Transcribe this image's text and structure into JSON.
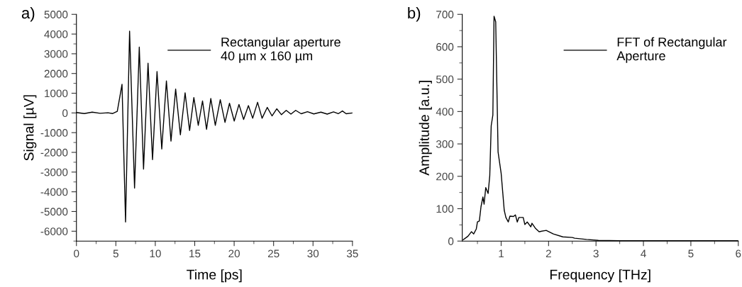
{
  "chart_data": [
    {
      "type": "line",
      "xlabel": "Time [ps]",
      "ylabel": "Signal [µV]",
      "annotations": [
        "a)"
      ],
      "legend": "top right",
      "grid": false,
      "xlim": [
        0,
        35
      ],
      "xticks": [
        0,
        {
          "value": 2.5,
          "label": null
        },
        5,
        {
          "value": 7.5,
          "label": null
        },
        10,
        {
          "value": 12.5,
          "label": null
        },
        15,
        {
          "value": 17.5,
          "label": null
        },
        20,
        {
          "value": 22.5,
          "label": null
        },
        25,
        {
          "value": 27.5,
          "label": null
        },
        30,
        {
          "value": 32.5,
          "label": null
        },
        35
      ],
      "ylim": [
        -6500,
        5000
      ],
      "yticks": [
        {
          "value": -6500,
          "label": null
        },
        -6000,
        {
          "value": -5500,
          "label": null
        },
        -5000,
        {
          "value": -4500,
          "label": null
        },
        -4000,
        {
          "value": -3500,
          "label": null
        },
        -3000,
        {
          "value": -2500,
          "label": null
        },
        -2000,
        {
          "value": -1500,
          "label": null
        },
        -1000,
        {
          "value": -500,
          "label": null
        },
        0,
        {
          "value": 500,
          "label": null
        },
        1000,
        {
          "value": 1500,
          "label": null
        },
        2000,
        {
          "value": 2500,
          "label": null
        },
        3000,
        {
          "value": 3500,
          "label": null
        },
        4000,
        {
          "value": 4500,
          "label": null
        },
        5000
      ],
      "series": [
        {
          "name": "Rectangular aperture\n40 µm x 160 µm",
          "color": "#000000",
          "x": [
            0,
            1,
            2,
            3,
            4,
            4.6,
            5.18,
            5.78,
            6.23,
            6.74,
            7.37,
            7.97,
            8.51,
            9.08,
            9.65,
            10.22,
            10.82,
            11.41,
            11.99,
            12.58,
            13.18,
            13.78,
            14.35,
            14.89,
            15.45,
            15.99,
            16.5,
            17.04,
            17.61,
            18.24,
            18.84,
            19.41,
            20.01,
            20.61,
            21.2,
            21.81,
            22.35,
            22.97,
            23.54,
            24.2,
            24.8,
            25.4,
            26.0,
            26.6,
            27.2,
            27.8,
            28.5,
            29.3,
            30.1,
            31.0,
            31.8,
            32.6,
            33.2,
            33.73,
            34.2,
            35
          ],
          "values": [
            20,
            -30,
            40,
            -20,
            10,
            -30,
            80,
            1450,
            -5530,
            4150,
            -3810,
            3340,
            -2850,
            2520,
            -2370,
            2100,
            -1830,
            1620,
            -1430,
            1210,
            -1110,
            1020,
            -890,
            780,
            -630,
            610,
            -830,
            730,
            -630,
            670,
            -480,
            490,
            -410,
            430,
            -330,
            370,
            -270,
            540,
            -270,
            280,
            -150,
            210,
            -90,
            130,
            -60,
            130,
            -40,
            60,
            -50,
            40,
            -60,
            50,
            -40,
            100,
            -40,
            0
          ]
        }
      ]
    },
    {
      "type": "line",
      "xlabel": "Frequency [THz]",
      "ylabel": "Amplitude [a.u.]",
      "annotations": [
        "b)"
      ],
      "legend": "top right",
      "grid": false,
      "xlim": [
        0.18,
        6
      ],
      "xticks": [
        {
          "value": 0.5,
          "label": null
        },
        1,
        {
          "value": 1.5,
          "label": null
        },
        2,
        {
          "value": 2.5,
          "label": null
        },
        3,
        {
          "value": 3.5,
          "label": null
        },
        4,
        {
          "value": 4.5,
          "label": null
        },
        5,
        {
          "value": 5.5,
          "label": null
        },
        6
      ],
      "ylim": [
        0,
        700
      ],
      "yticks": [
        0,
        {
          "value": 50,
          "label": null
        },
        100,
        {
          "value": 150,
          "label": null
        },
        200,
        {
          "value": 250,
          "label": null
        },
        300,
        {
          "value": 350,
          "label": null
        },
        400,
        {
          "value": 450,
          "label": null
        },
        500,
        {
          "value": 550,
          "label": null
        },
        600,
        {
          "value": 650,
          "label": null
        },
        700
      ],
      "series": [
        {
          "name": "FFT of Rectangular\nAperture",
          "color": "#000000",
          "x": [
            0.2,
            0.3,
            0.375,
            0.42,
            0.475,
            0.5,
            0.54,
            0.575,
            0.615,
            0.64,
            0.675,
            0.725,
            0.76,
            0.79,
            0.825,
            0.85,
            0.885,
            0.935,
            1.0,
            1.065,
            1.1,
            1.15,
            1.185,
            1.26,
            1.3,
            1.34,
            1.375,
            1.465,
            1.5,
            1.55,
            1.625,
            1.65,
            1.72,
            1.8,
            1.95,
            2.1,
            2.3,
            2.5,
            2.55,
            2.8,
            3.05,
            3.5,
            4.0,
            4.5,
            5.0,
            5.5,
            6.0
          ],
          "values": [
            4,
            15,
            29,
            22,
            37,
            59,
            62,
            106,
            136,
            114,
            165,
            147,
            202,
            356,
            389,
            694,
            677,
            275,
            209,
            95,
            73,
            59,
            77,
            76,
            81,
            59,
            73,
            73,
            51,
            59,
            44,
            55,
            40,
            29,
            33,
            22,
            13,
            11,
            9,
            5,
            2,
            1,
            1,
            1,
            1,
            1,
            1
          ]
        }
      ]
    }
  ]
}
